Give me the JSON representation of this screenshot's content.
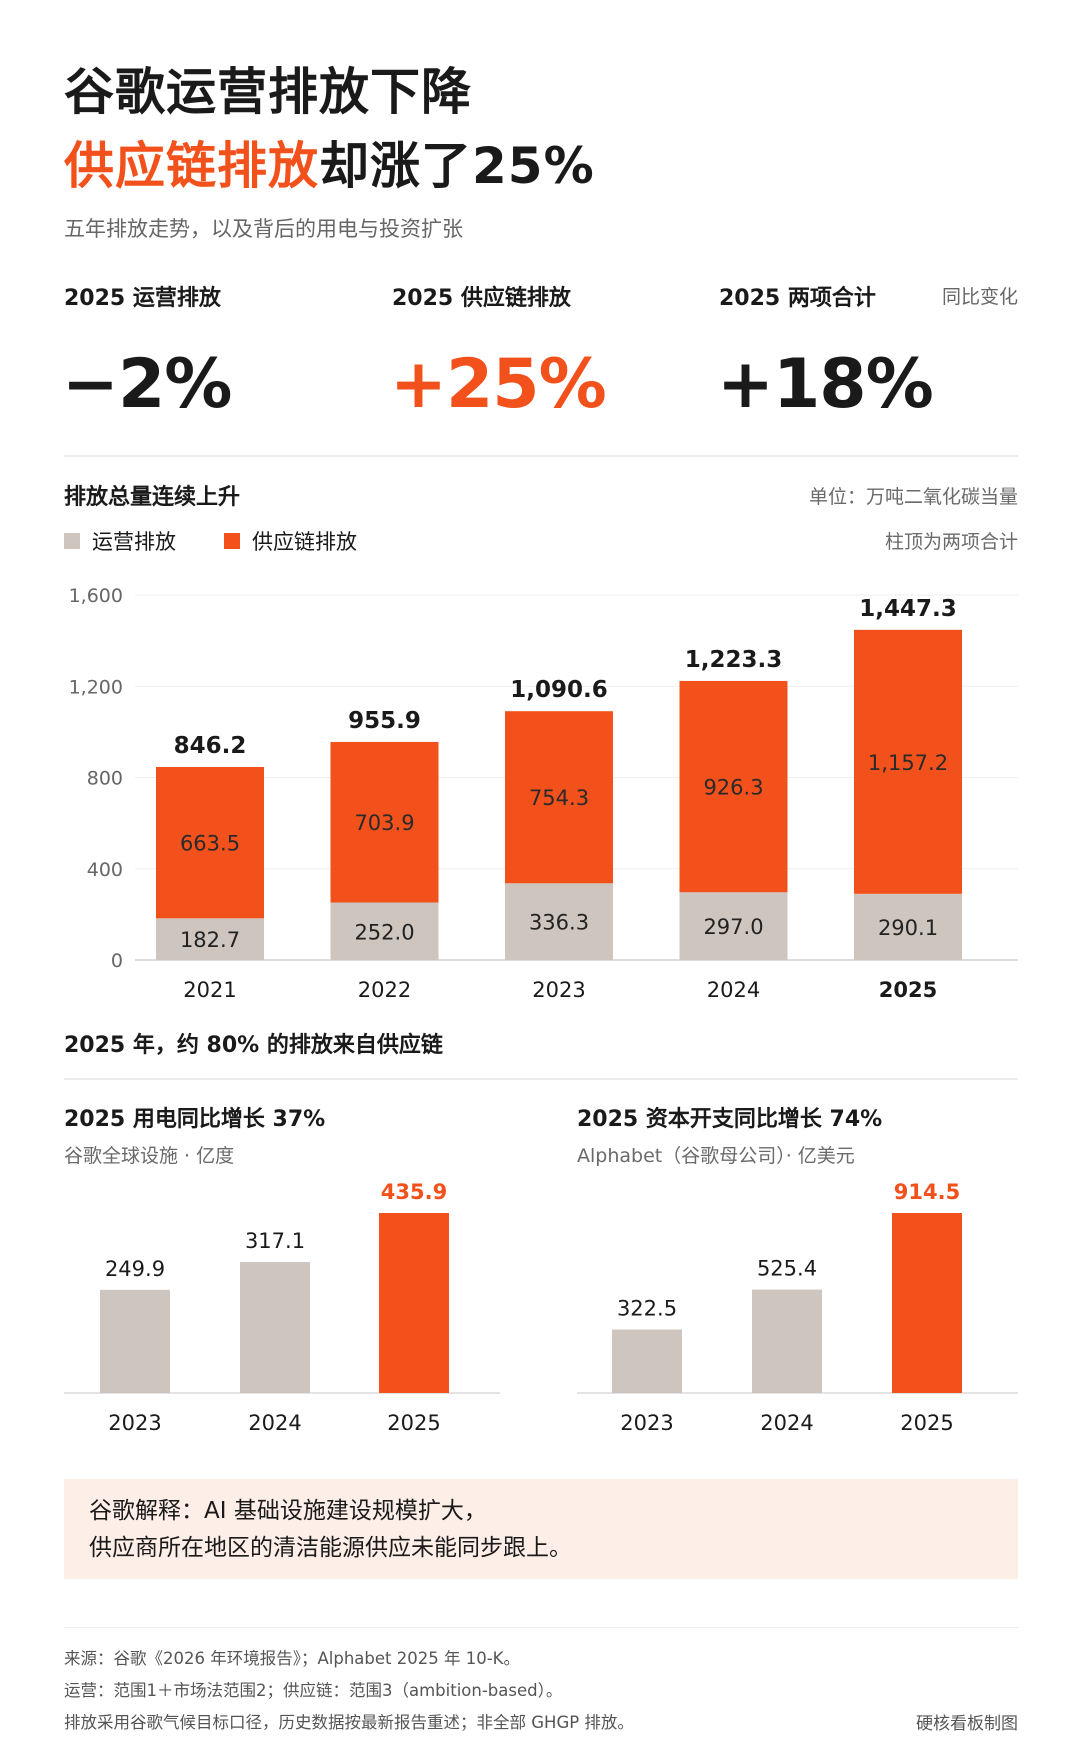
{
  "header": {
    "title_line1": "谷歌运营排放下降",
    "title_line2_accent": "供应链排放",
    "title_line2_rest": "却涨了25%",
    "subtitle": "五年排放走势，以及背后的用电与投资扩张"
  },
  "stats": {
    "note": "同比变化",
    "items": [
      {
        "label": "2025 运营排放",
        "value": "−2%"
      },
      {
        "label": "2025 供应链排放",
        "value": "+25%"
      },
      {
        "label": "2025 两项合计",
        "value": "+18%"
      }
    ]
  },
  "colors": {
    "accent": "#f2511b",
    "grey": "#cdc5be",
    "note_bg": "#fdeee7"
  },
  "main_chart": {
    "title": "排放总量连续上升",
    "unit": "单位：万吨二氧化碳当量",
    "note": "柱顶为两项合计",
    "legend": [
      "运营排放",
      "供应链排放"
    ],
    "caption": "2025 年，约 80% 的排放来自供应链"
  },
  "electricity": {
    "title": "2025 用电同比增长 37%",
    "subtitle": "谷歌全球设施 · 亿度"
  },
  "capex": {
    "title": "2025 资本开支同比增长 74%",
    "subtitle": "Alphabet（谷歌母公司）· 亿美元"
  },
  "callout": {
    "line1": "谷歌解释：AI 基础设施建设规模扩大，",
    "line2": "供应商所在地区的清洁能源供应未能同步跟上。"
  },
  "footer": {
    "line1": "来源：谷歌《2026 年环境报告》；Alphabet 2025 年 10-K。",
    "line2": "运营：范围1＋市场法范围2；供应链：范围3（ambition-based）。",
    "line3": "排放采用谷歌气候目标口径，历史数据按最新报告重述；非全部 GHGP 排放。",
    "credit": "硬核看板制图"
  },
  "chart_data": [
    {
      "type": "bar",
      "stacked": true,
      "categories": [
        "2021",
        "2022",
        "2023",
        "2024",
        "2025"
      ],
      "series": [
        {
          "name": "运营排放",
          "values": [
            182.7,
            252.0,
            336.3,
            297.0,
            290.1
          ],
          "labels": [
            "182.7",
            "252.0",
            "336.3",
            "297.0",
            "290.1"
          ]
        },
        {
          "name": "供应链排放",
          "values": [
            663.5,
            703.9,
            754.3,
            926.3,
            1157.2
          ],
          "labels": [
            "663.5",
            "703.9",
            "754.3",
            "926.3",
            "1,157.2"
          ]
        }
      ],
      "totals": [
        846.2,
        955.9,
        1090.6,
        1223.3,
        1447.3
      ],
      "total_labels": [
        "846.2",
        "955.9",
        "1,090.6",
        "1,223.3",
        "1,447.3"
      ],
      "yticks": [
        "0",
        "400",
        "800",
        "1,200",
        "1,600"
      ],
      "ylim": [
        0,
        1600
      ],
      "grid": true
    },
    {
      "type": "bar",
      "categories": [
        "2023",
        "2024",
        "2025"
      ],
      "values": [
        249.9,
        317.1,
        435.9
      ],
      "labels": [
        "249.9",
        "317.1",
        "435.9"
      ],
      "highlight": "2025"
    },
    {
      "type": "bar",
      "categories": [
        "2023",
        "2024",
        "2025"
      ],
      "values": [
        322.5,
        525.4,
        914.5
      ],
      "labels": [
        "322.5",
        "525.4",
        "914.5"
      ],
      "highlight": "2025"
    }
  ]
}
